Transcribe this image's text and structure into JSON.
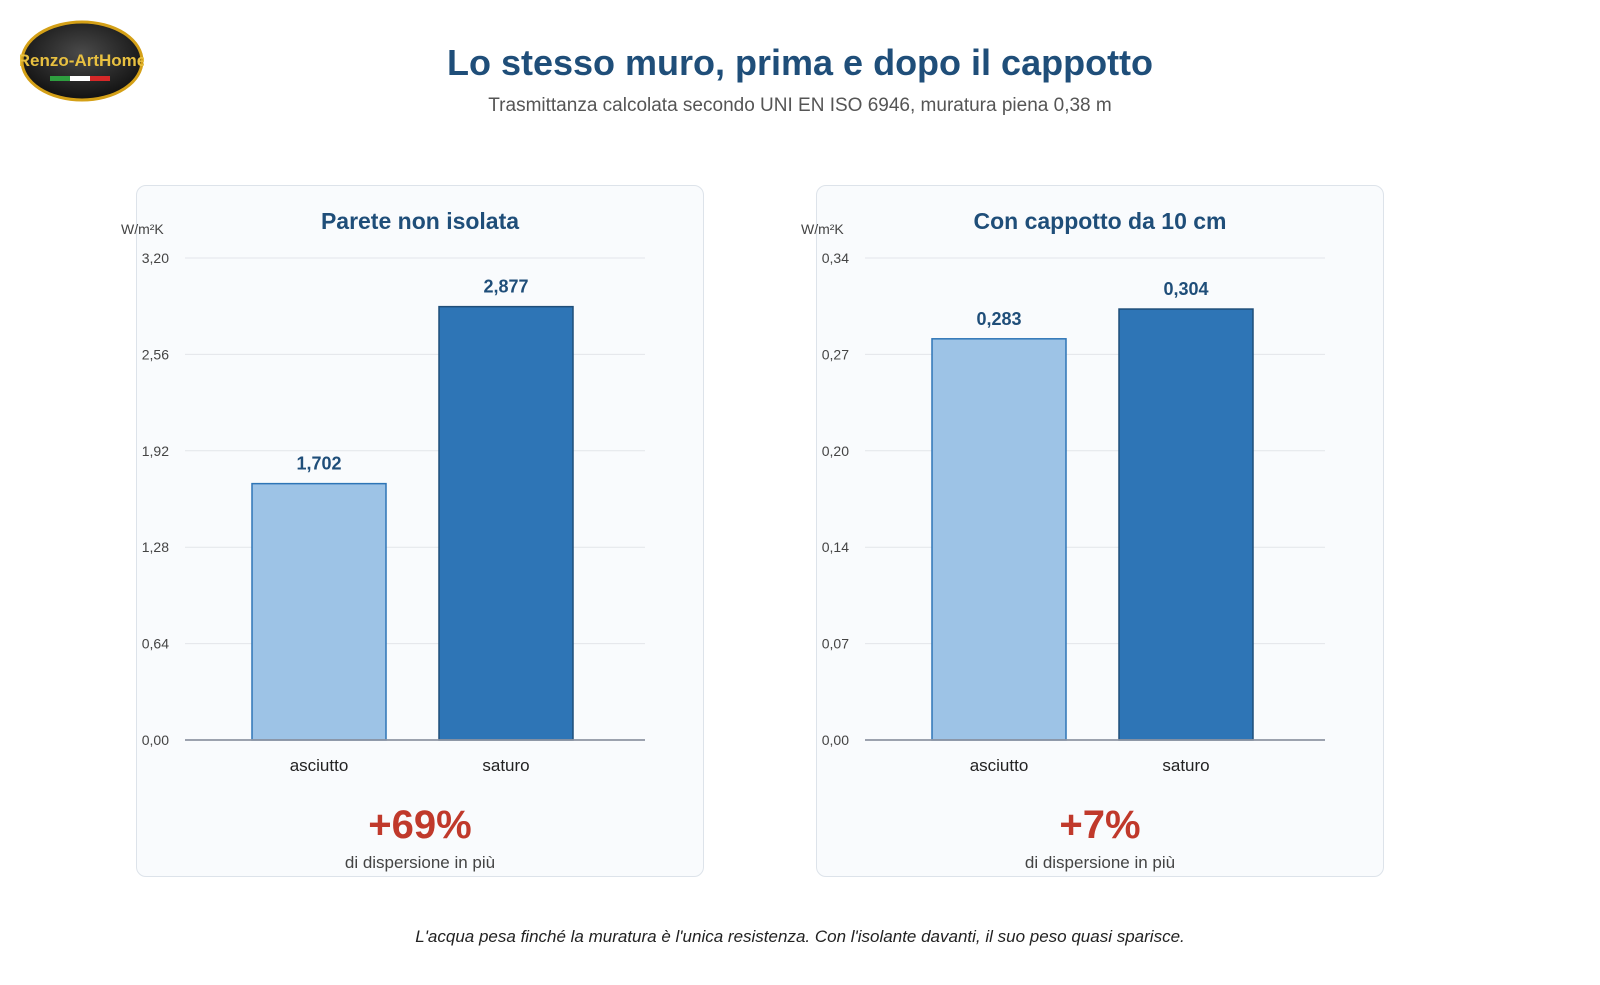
{
  "page": {
    "title": "Lo stesso muro, prima e dopo il cappotto",
    "subtitle": "Trasmittanza calcolata secondo UNI EN ISO 6946, muratura piena 0,38 m",
    "footnote": "L'acqua pesa finché la muratura è l'unica resistenza. Con l'isolante davanti, il suo peso quasi sparisce."
  },
  "logo": {
    "text": "Renzo-ArtHome",
    "icon": "italian-flag-icon"
  },
  "colors": {
    "title": "#1f4e79",
    "bar_dry": "#9dc3e6",
    "bar_saturated": "#2e75b6",
    "bar_stroke": "#2e75b6",
    "bar_stroke_dark": "#1f4e79",
    "percent": "#c0392b"
  },
  "chart_data": [
    {
      "type": "bar",
      "title": "Parete non isolata",
      "ylabel": "W/m²K",
      "categories": [
        "asciutto",
        "saturo"
      ],
      "values": [
        1.702,
        2.877
      ],
      "value_labels": [
        "1,702",
        "2,877"
      ],
      "ylim": [
        0,
        3.2
      ],
      "yticks": [
        0,
        0.64,
        1.28,
        1.92,
        2.56,
        3.2
      ],
      "ytick_labels": [
        "0,00",
        "0,64",
        "1,28",
        "1,92",
        "2,56",
        "3,20"
      ],
      "grid": true,
      "annotation_value": "+69%",
      "annotation_text": "di dispersione in più"
    },
    {
      "type": "bar",
      "title": "Con cappotto da 10 cm",
      "ylabel": "W/m²K",
      "categories": [
        "asciutto",
        "saturo"
      ],
      "values": [
        0.283,
        0.304
      ],
      "value_labels": [
        "0,283",
        "0,304"
      ],
      "ylim": [
        0,
        0.34
      ],
      "yticks": [
        0,
        0.068,
        0.136,
        0.204,
        0.272,
        0.34
      ],
      "ytick_labels": [
        "0,00",
        "0,07",
        "0,14",
        "0,20",
        "0,27",
        "0,34"
      ],
      "grid": true,
      "annotation_value": "+7%",
      "annotation_text": "di dispersione in più"
    }
  ]
}
